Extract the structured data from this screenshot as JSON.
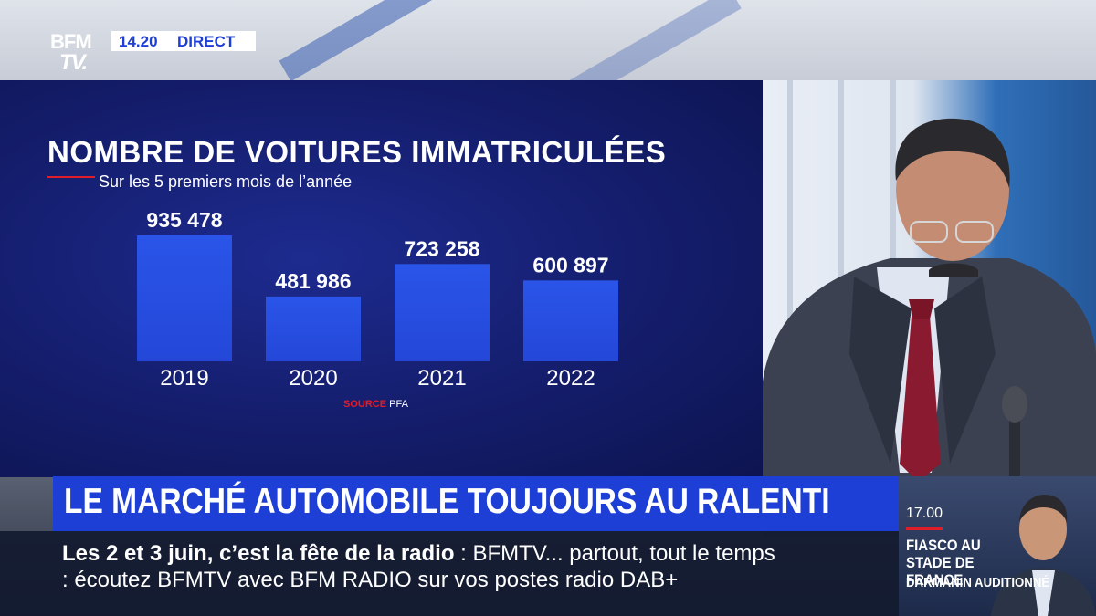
{
  "broadcast": {
    "logo": "BFM TV",
    "time": "14.20",
    "live_label": "DIRECT"
  },
  "chart_data": {
    "type": "bar",
    "title": "NOMBRE DE VOITURES IMMATRICULÉES",
    "subtitle": "Sur les 5 premiers mois de l’année",
    "categories": [
      "2019",
      "2020",
      "2021",
      "2022"
    ],
    "values": [
      935478,
      481986,
      723258,
      600897
    ],
    "value_labels": [
      "935 478",
      "481 986",
      "723 258",
      "600 897"
    ],
    "ylim": [
      0,
      935478
    ],
    "grid": false,
    "legend": "none",
    "source_word": "SOURCE",
    "source_name": "PFA",
    "bar_color": "#2a55e8",
    "background_color": "#141d6b"
  },
  "headline": "LE MARCHÉ AUTOMOBILE TOUJOURS AU RALENTI",
  "ticker": {
    "line1_bold": "Les 2 et 3 juin, c’est la fête de la radio",
    "line1_rest": " : BFMTV... partout, tout le temps",
    "line2": ": écoutez BFMTV avec BFM RADIO sur vos postes radio DAB+"
  },
  "next_programme": {
    "time": "17.00",
    "title": "FIASCO AU STADE DE FRANCE",
    "subtitle": "DARMANIN AUDITIONNÉ"
  },
  "colors": {
    "brand_blue": "#1e3fd6",
    "accent_red": "#e11d2a",
    "text_white": "#ffffff"
  }
}
